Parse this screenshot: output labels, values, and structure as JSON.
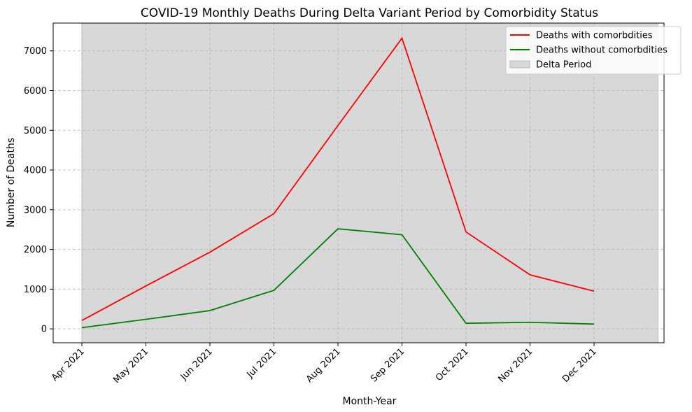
{
  "chart_data": {
    "type": "line",
    "title": "COVID-19 Monthly Deaths During Delta Variant Period by Comorbidity Status",
    "xlabel": "Month-Year",
    "ylabel": "Number of Deaths",
    "categories": [
      "Apr 2021",
      "May 2021",
      "Jun 2021",
      "Jul 2021",
      "Aug 2021",
      "Sep 2021",
      "Oct 2021",
      "Nov 2021",
      "Dec 2021"
    ],
    "ylim": [
      -350,
      7700
    ],
    "yticks": [
      0,
      1000,
      2000,
      3000,
      4000,
      5000,
      6000,
      7000
    ],
    "grid": true,
    "legend_position": "top-right",
    "series": [
      {
        "name": "Deaths with comorbdities",
        "color": "#ff0000",
        "values": [
          210,
          1080,
          1930,
          2900,
          5120,
          7320,
          2440,
          1360,
          950
        ]
      },
      {
        "name": "Deaths without comorbdities",
        "color": "#008000",
        "values": [
          30,
          240,
          460,
          970,
          2520,
          2370,
          140,
          165,
          120
        ]
      }
    ],
    "shaded_region": {
      "name": "Delta Period",
      "color": "#d8d8d8",
      "start": "Apr 2021",
      "end": "Dec 2021 end"
    }
  }
}
